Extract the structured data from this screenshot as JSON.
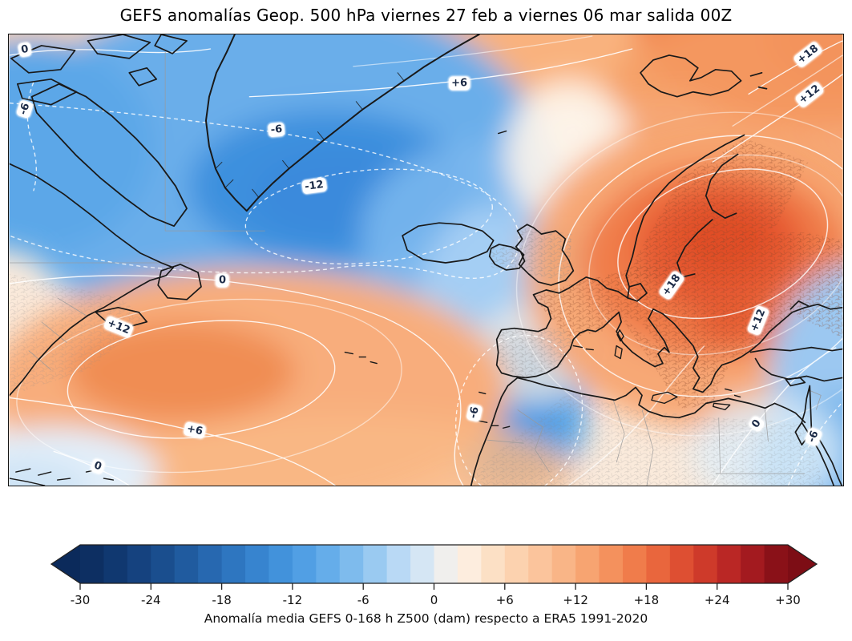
{
  "title": "GEFS anomalías Geop. 500 hPa viernes 27 feb a viernes 06 mar salida 00Z",
  "colors": {
    "coastline": "#191919",
    "admin_na": "#999999",
    "contour_line": "#ffffff",
    "label_text": "#1c2b47",
    "label_halo": "#ffffff",
    "colorbar_outline": "#222222"
  },
  "chart_data": {
    "type": "heatmap",
    "title": "GEFS anomalías Geop. 500 hPa viernes 27 feb a viernes 06 mar salida 00Z",
    "field": "Z500 geopotential height anomaly",
    "units": "dam",
    "region": "North Atlantic / Europe",
    "colorbar": {
      "label": "Anomalía media GEFS 0-168 h Z500 (dam) respecto a ERA5 1991-2020",
      "tick_labels": [
        "-30",
        "-24",
        "-18",
        "-12",
        "-6",
        "0",
        "+6",
        "+12",
        "+18",
        "+24",
        "+30"
      ],
      "tick_values": [
        -30,
        -24,
        -18,
        -12,
        -6,
        0,
        6,
        12,
        18,
        24,
        30
      ],
      "vmin": -30,
      "vmax": 30,
      "n_segments": 30,
      "extend": "both",
      "anchor_colors": [
        "#0b2a5b",
        "#123c77",
        "#1d5496",
        "#2a6fb8",
        "#3b8bd6",
        "#58a6e8",
        "#8ac2ef",
        "#c8e1f7",
        "#fdf4ea",
        "#fcd9b8",
        "#fabd92",
        "#f69c66",
        "#ee7142",
        "#d8432c",
        "#b01e22",
        "#7d0d15"
      ]
    },
    "contour_labels": [
      {
        "text": "0",
        "x": 1.9,
        "y": 3.3,
        "rot": -10
      },
      {
        "text": "-6",
        "x": 1.9,
        "y": 16.5,
        "rot": -72
      },
      {
        "text": "+6",
        "x": 54.0,
        "y": 10.8,
        "rot": 0
      },
      {
        "text": "+18",
        "x": 95.8,
        "y": 4.5,
        "rot": -38
      },
      {
        "text": "+12",
        "x": 96.0,
        "y": 13.4,
        "rot": -38
      },
      {
        "text": "-6",
        "x": 32.1,
        "y": 21.2,
        "rot": -5
      },
      {
        "text": "-12",
        "x": 36.6,
        "y": 33.5,
        "rot": -8
      },
      {
        "text": "0",
        "x": 25.6,
        "y": 54.6,
        "rot": 0
      },
      {
        "text": "+12",
        "x": 13.2,
        "y": 64.8,
        "rot": 22
      },
      {
        "text": "+18",
        "x": 79.4,
        "y": 55.6,
        "rot": -55
      },
      {
        "text": "+12",
        "x": 89.8,
        "y": 63.4,
        "rot": -68
      },
      {
        "text": "+6",
        "x": 22.3,
        "y": 87.8,
        "rot": 12
      },
      {
        "text": "0",
        "x": 10.7,
        "y": 95.8,
        "rot": 18
      },
      {
        "text": "-6",
        "x": 55.8,
        "y": 83.8,
        "rot": -78
      },
      {
        "text": "0",
        "x": 89.6,
        "y": 86.4,
        "rot": -55
      },
      {
        "text": "-6",
        "x": 96.4,
        "y": 89.2,
        "rot": -68
      }
    ],
    "anomaly_centers_dam": [
      {
        "value": -12,
        "region": "south of Greenland / Davis Strait"
      },
      {
        "value": -6,
        "region": "Morocco / Canary Islands"
      },
      {
        "value": -6,
        "region": "Red Sea / Egypt"
      },
      {
        "value": 12,
        "region": "western Atlantic south of Nova Scotia"
      },
      {
        "value": 18,
        "region": "eastern Europe (Poland / Belarus)"
      },
      {
        "value": 18,
        "region": "Arctic, top-right corner"
      }
    ],
    "contour_interval_dam": 3,
    "negative_contours_dashed": true
  }
}
